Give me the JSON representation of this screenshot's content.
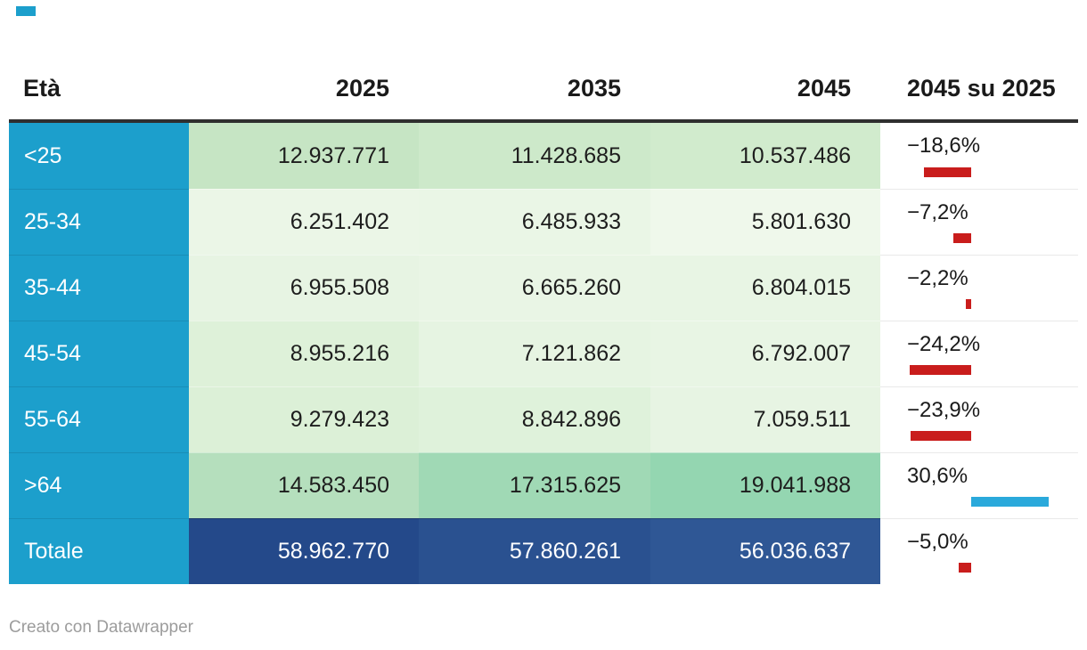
{
  "colors": {
    "accent_blue": "#1c9fcc",
    "bar_negative": "#c91d1c",
    "bar_positive": "#2aa9db",
    "header_rule": "#2f2f2f",
    "footer_gray": "#9c9c9c"
  },
  "header": {
    "age": "Età",
    "y2025": "2025",
    "y2035": "2035",
    "y2045": "2045",
    "change": "2045 su 2025"
  },
  "rows": [
    {
      "label": "<25",
      "v2025": "12.937.771",
      "v2035": "11.428.685",
      "v2045": "10.537.486",
      "pct_label": "−18,6%",
      "pct": -18.6,
      "bg": [
        "#c6e5c4",
        "#cde9ca",
        "#d1ebcd"
      ]
    },
    {
      "label": "25-34",
      "v2025": "6.251.402",
      "v2035": "6.485.933",
      "v2045": "5.801.630",
      "pct_label": "−7,2%",
      "pct": -7.2,
      "bg": [
        "#ebf6e7",
        "#eaf6e6",
        "#eff8eb"
      ]
    },
    {
      "label": "35-44",
      "v2025": "6.955.508",
      "v2035": "6.665.260",
      "v2045": "6.804.015",
      "pct_label": "−2,2%",
      "pct": -2.2,
      "bg": [
        "#e7f4e3",
        "#e9f5e5",
        "#e8f5e4"
      ]
    },
    {
      "label": "45-54",
      "v2025": "8.955.216",
      "v2035": "7.121.862",
      "v2045": "6.792.007",
      "pct_label": "−24,2%",
      "pct": -24.2,
      "bg": [
        "#def1d9",
        "#e6f4e2",
        "#e8f5e4"
      ]
    },
    {
      "label": "55-64",
      "v2025": "9.279.423",
      "v2035": "8.842.896",
      "v2045": "7.059.511",
      "pct_label": "−23,9%",
      "pct": -23.9,
      "bg": [
        "#dcf0d7",
        "#dff2db",
        "#e7f4e3"
      ]
    },
    {
      "label": ">64",
      "v2025": "14.583.450",
      "v2035": "17.315.625",
      "v2045": "19.041.988",
      "pct_label": "30,6%",
      "pct": 30.6,
      "bg": [
        "#b5dfbd",
        "#a0d9b5",
        "#94d6b1"
      ]
    },
    {
      "label": "Totale",
      "v2025": "58.962.770",
      "v2035": "57.860.261",
      "v2045": "56.036.637",
      "pct_label": "−5,0%",
      "pct": -5.0,
      "bg": [
        "#24498a",
        "#2a5190",
        "#2f5795"
      ]
    }
  ],
  "footer": {
    "credit": "Creato con Datawrapper"
  },
  "chart_data": {
    "type": "table",
    "title": "",
    "row_header": "Età",
    "categories": [
      "<25",
      "25-34",
      "35-44",
      "45-54",
      "55-64",
      ">64",
      "Totale"
    ],
    "series": [
      {
        "name": "2025",
        "values": [
          12937771,
          6251402,
          6955508,
          8955216,
          9279423,
          14583450,
          58962770
        ]
      },
      {
        "name": "2035",
        "values": [
          11428685,
          6485933,
          6665260,
          7121862,
          8842896,
          17315625,
          57860261
        ]
      },
      {
        "name": "2045",
        "values": [
          10537486,
          5801630,
          6804015,
          6792007,
          7059511,
          19041988,
          56036637
        ]
      }
    ],
    "change_column": {
      "name": "2045 su 2025",
      "unit": "%",
      "values": [
        -18.6,
        -7.2,
        -2.2,
        -24.2,
        -23.9,
        30.6,
        -5.0
      ],
      "bar_type": "diverging-bar",
      "negative_color": "#c91d1c",
      "positive_color": "#2aa9db"
    },
    "heatmap": true,
    "credit": "Creato con Datawrapper"
  }
}
